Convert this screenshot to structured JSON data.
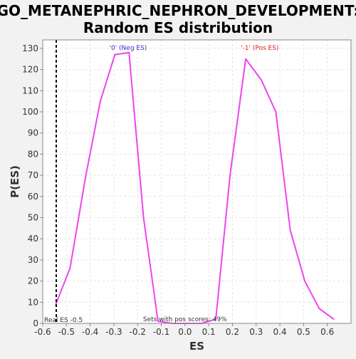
{
  "chart_data": {
    "type": "line",
    "title_line1": "GO_METANEPHRIC_NEPHRON_DEVELOPMENT:",
    "title_line2": "Random ES distribution",
    "xlabel": "ES",
    "ylabel": "P(ES)",
    "xlim": [
      -0.6,
      0.7
    ],
    "ylim": [
      0,
      134
    ],
    "x_ticks": [
      -0.6,
      -0.5,
      -0.4,
      -0.3,
      -0.2,
      -0.1,
      0.0,
      0.1,
      0.2,
      0.3,
      0.4,
      0.5,
      0.6
    ],
    "x_tick_labels": [
      "-0.6",
      "-0.5",
      "-0.4",
      "-0.3",
      "-0.2",
      "-0.1",
      "0.0",
      "0.1",
      "0.2",
      "0.3",
      "0.4",
      "0.5",
      "0.6"
    ],
    "y_ticks": [
      0,
      10,
      20,
      30,
      40,
      50,
      60,
      70,
      80,
      90,
      100,
      110,
      120,
      130
    ],
    "y_tick_labels": [
      "0",
      "10",
      "20",
      "30",
      "40",
      "50",
      "60",
      "70",
      "80",
      "90",
      "100",
      "110",
      "120",
      "130"
    ],
    "grid": true,
    "series": [
      {
        "color": "#ee44ee",
        "x": [
          -0.545,
          -0.485,
          -0.418,
          -0.357,
          -0.296,
          -0.236,
          -0.175,
          -0.114,
          -0.053,
          0.008,
          0.069,
          0.13,
          0.19,
          0.256,
          0.322,
          0.383,
          0.444,
          0.505,
          0.566,
          0.627
        ],
        "y": [
          9,
          26,
          70,
          105,
          127,
          128,
          50,
          1,
          0,
          0,
          0,
          2,
          70,
          125,
          115,
          100,
          44,
          20,
          7,
          2
        ]
      }
    ],
    "real_es": -0.5,
    "real_es_color": "#000000",
    "annotations": {
      "neg_label": "'0' (Neg ES)",
      "neg_color": "#3333cc",
      "neg_x": -0.24,
      "pos_label": "'-1' (Pos ES)",
      "pos_color": "#dd2222",
      "pos_x": 0.315,
      "real_es_text": "Real ES -0.5",
      "sets_text": "Sets with pos scores: 49%"
    }
  }
}
